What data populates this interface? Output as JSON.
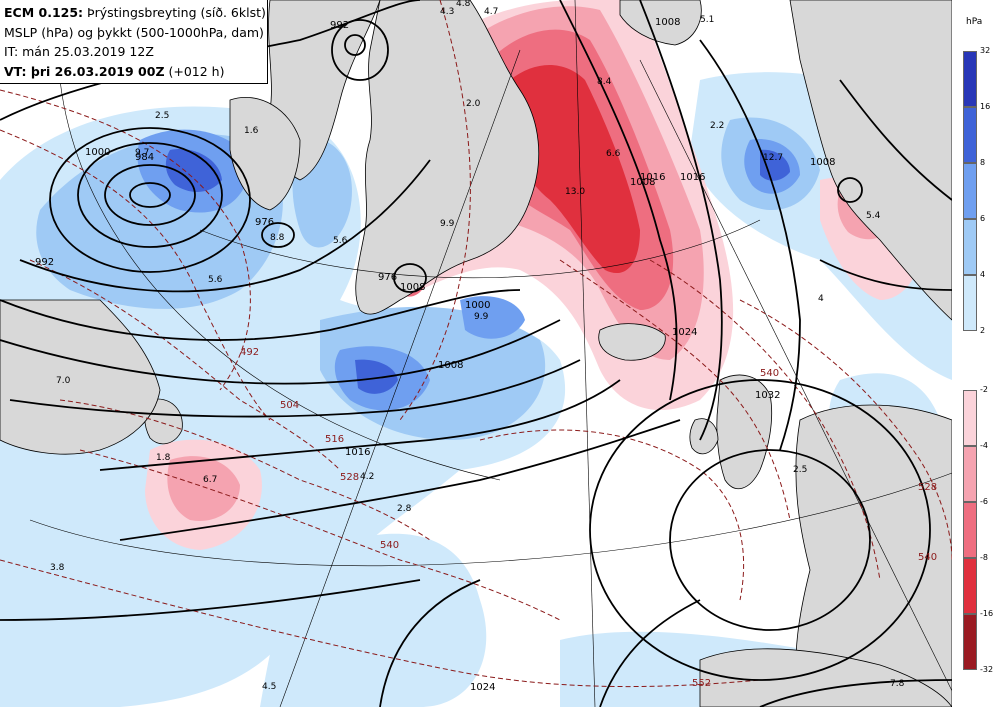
{
  "header": {
    "line1_bold": "ECM 0.125:",
    "line1_text": "Þrýstingsbreyting (síð. 6klst)",
    "line2": "MSLP (hPa) og þykkt (500-1000hPa, dam)",
    "line3": "IT: mán 25.03.2019 12Z",
    "line4_bold": "VT: þri 26.03.2019 00Z",
    "line4_text": "(+012 h)"
  },
  "legend": {
    "unit": "hPa",
    "positive": {
      "ticks": [
        "32",
        "16",
        "8",
        "6",
        "4",
        "2"
      ],
      "colors": [
        "#2837b8",
        "#3f63d8",
        "#6f9ff0",
        "#9fcaf5",
        "#cfe9fb"
      ]
    },
    "negative": {
      "ticks": [
        "-2",
        "-4",
        "-6",
        "-8",
        "-16",
        "-32"
      ],
      "colors": [
        "#fbd3da",
        "#f5a3b0",
        "#ee6e80",
        "#e0303e",
        "#9a1a22"
      ]
    }
  },
  "colors": {
    "land": "#d8d8d8",
    "ocean": "#ffffff",
    "isobar": "#000000",
    "thickness": "#8b1a1a"
  },
  "isobar_labels": [
    "992",
    "1000",
    "984",
    "976",
    "992",
    "1008",
    "1016",
    "976",
    "1000",
    "1008",
    "1016",
    "1024",
    "1032",
    "1024",
    "1008",
    "1008",
    "1016",
    "1008"
  ],
  "thickness_labels": [
    "492",
    "504",
    "516",
    "528",
    "540",
    "540",
    "552",
    "528",
    "540"
  ],
  "pressure_change_values": [
    "4.3",
    "4.8",
    "4.7",
    "5.1",
    "2.5",
    "1.6",
    "9.7",
    "8.8",
    "5.6",
    "7.0",
    "2.0",
    "8.4",
    "2.2",
    "12.7",
    "5.6",
    "9.9",
    "6.6",
    "13.0",
    "5.4",
    "9.9",
    "6.7",
    "4.2",
    "2.8",
    "3.8",
    "2.5",
    "4.5",
    "7.8",
    "4",
    "1.8"
  ]
}
